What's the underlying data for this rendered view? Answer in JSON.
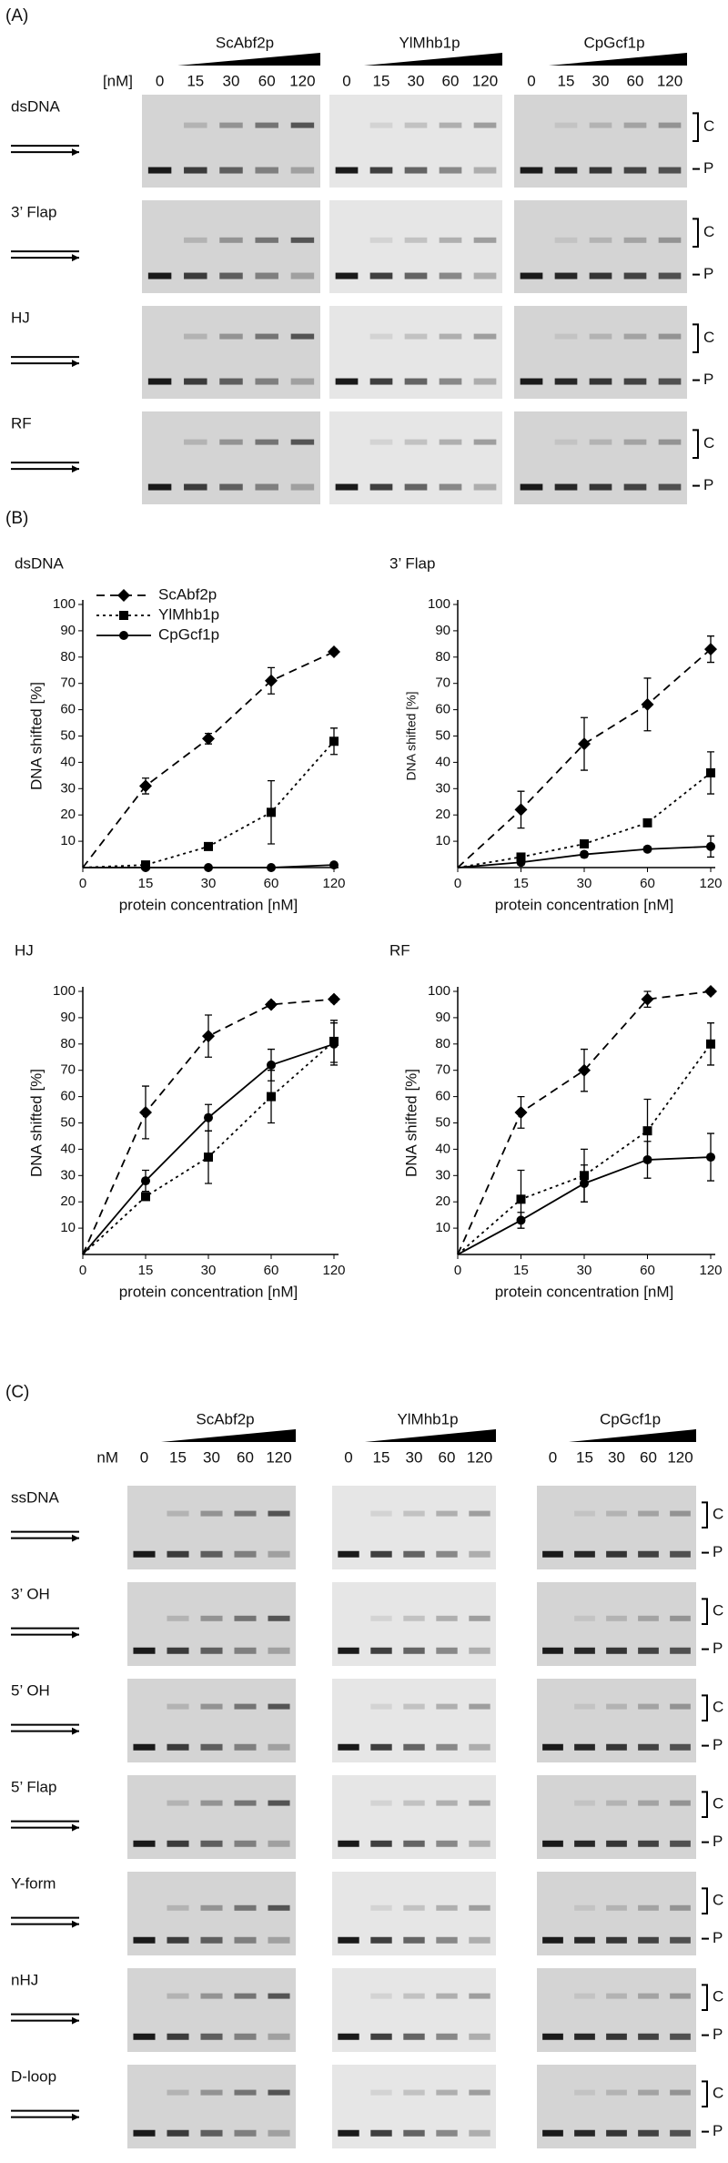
{
  "panel_a": {
    "label": "(A)",
    "proteins": [
      "ScAbf2p",
      "YlMhb1p",
      "CpGcf1p"
    ],
    "unit": "[nM]",
    "lanes": [
      "0",
      "15",
      "30",
      "60",
      "120"
    ],
    "rows": [
      "dsDNA",
      "3’ Flap",
      "HJ",
      "RF"
    ],
    "complex": "C",
    "probe": "P"
  },
  "panel_b": {
    "label": "(B)"
  },
  "chart_data": [
    {
      "type": "line",
      "title": "dsDNA",
      "xlabel": "protein concentration [nM]",
      "ylabel": "DNA shifted [%]",
      "categories": [
        "0",
        "15",
        "30",
        "60",
        "120"
      ],
      "ylim": [
        0,
        100
      ],
      "yticks": [
        10,
        20,
        30,
        40,
        50,
        60,
        70,
        80,
        90,
        100
      ],
      "legend": "upper left",
      "series": [
        {
          "name": "ScAbf2p",
          "color": "#000000",
          "linestyle": "dashed",
          "marker": "diamond",
          "values": [
            0,
            31,
            49,
            71,
            82
          ],
          "errors": [
            0,
            3,
            2,
            5,
            1
          ]
        },
        {
          "name": "YlMhb1p",
          "color": "#000000",
          "linestyle": "dotted",
          "marker": "square",
          "values": [
            0,
            1,
            8,
            21,
            48
          ],
          "errors": [
            0,
            1,
            1,
            12,
            5
          ]
        },
        {
          "name": "CpGcf1p",
          "color": "#000000",
          "linestyle": "solid",
          "marker": "circle",
          "values": [
            0,
            0,
            0,
            0,
            1
          ],
          "errors": [
            0,
            0,
            0,
            0,
            0
          ]
        }
      ]
    },
    {
      "type": "line",
      "title": "3’ Flap",
      "xlabel": "protein concentration [nM]",
      "ylabel": "DNA shifted [%]",
      "categories": [
        "0",
        "15",
        "30",
        "60",
        "120"
      ],
      "ylim": [
        0,
        100
      ],
      "yticks": [
        10,
        20,
        30,
        40,
        50,
        60,
        70,
        80,
        90,
        100
      ],
      "series": [
        {
          "name": "ScAbf2p",
          "color": "#000000",
          "linestyle": "dashed",
          "marker": "diamond",
          "values": [
            0,
            22,
            47,
            62,
            83
          ],
          "errors": [
            0,
            7,
            10,
            10,
            5
          ]
        },
        {
          "name": "YlMhb1p",
          "color": "#000000",
          "linestyle": "dotted",
          "marker": "square",
          "values": [
            0,
            4,
            9,
            17,
            36
          ],
          "errors": [
            0,
            1,
            1,
            1,
            8
          ]
        },
        {
          "name": "CpGcf1p",
          "color": "#000000",
          "linestyle": "solid",
          "marker": "circle",
          "values": [
            0,
            2,
            5,
            7,
            8
          ],
          "errors": [
            0,
            1,
            1,
            1,
            4
          ]
        }
      ]
    },
    {
      "type": "line",
      "title": "HJ",
      "xlabel": "protein concentration [nM]",
      "ylabel": "DNA shifted [%]",
      "categories": [
        "0",
        "15",
        "30",
        "60",
        "120"
      ],
      "ylim": [
        0,
        100
      ],
      "yticks": [
        10,
        20,
        30,
        40,
        50,
        60,
        70,
        80,
        90,
        100
      ],
      "series": [
        {
          "name": "ScAbf2p",
          "color": "#000000",
          "linestyle": "dashed",
          "marker": "diamond",
          "values": [
            0,
            54,
            83,
            95,
            97
          ],
          "errors": [
            0,
            10,
            8,
            1,
            1
          ]
        },
        {
          "name": "YlMhb1p",
          "color": "#000000",
          "linestyle": "dotted",
          "marker": "square",
          "values": [
            0,
            22,
            37,
            60,
            81
          ],
          "errors": [
            0,
            1,
            10,
            10,
            8
          ]
        },
        {
          "name": "CpGcf1p",
          "color": "#000000",
          "linestyle": "solid",
          "marker": "circle",
          "values": [
            0,
            28,
            52,
            72,
            80
          ],
          "errors": [
            0,
            4,
            5,
            6,
            8
          ]
        }
      ]
    },
    {
      "type": "line",
      "title": "RF",
      "xlabel": "protein concentration [nM]",
      "ylabel": "DNA shifted [%]",
      "categories": [
        "0",
        "15",
        "30",
        "60",
        "120"
      ],
      "ylim": [
        0,
        100
      ],
      "yticks": [
        10,
        20,
        30,
        40,
        50,
        60,
        70,
        80,
        90,
        100
      ],
      "series": [
        {
          "name": "ScAbf2p",
          "color": "#000000",
          "linestyle": "dashed",
          "marker": "diamond",
          "values": [
            0,
            54,
            70,
            97,
            100
          ],
          "errors": [
            0,
            6,
            8,
            3,
            1
          ]
        },
        {
          "name": "YlMhb1p",
          "color": "#000000",
          "linestyle": "dotted",
          "marker": "square",
          "values": [
            0,
            21,
            30,
            47,
            80
          ],
          "errors": [
            0,
            11,
            10,
            12,
            8
          ]
        },
        {
          "name": "CpGcf1p",
          "color": "#000000",
          "linestyle": "solid",
          "marker": "circle",
          "values": [
            0,
            13,
            27,
            36,
            37
          ],
          "errors": [
            0,
            3,
            7,
            7,
            9
          ]
        }
      ]
    }
  ],
  "panel_c": {
    "label": "(C)",
    "proteins": [
      "ScAbf2p",
      "YlMhb1p",
      "CpGcf1p"
    ],
    "unit": "nM",
    "lanes": [
      "0",
      "15",
      "30",
      "60",
      "120"
    ],
    "rows": [
      "ssDNA",
      "3’ OH",
      "5’ OH",
      "5’ Flap",
      "Y-form",
      "nHJ",
      "D-loop"
    ],
    "complex": "C",
    "probe": "P"
  }
}
